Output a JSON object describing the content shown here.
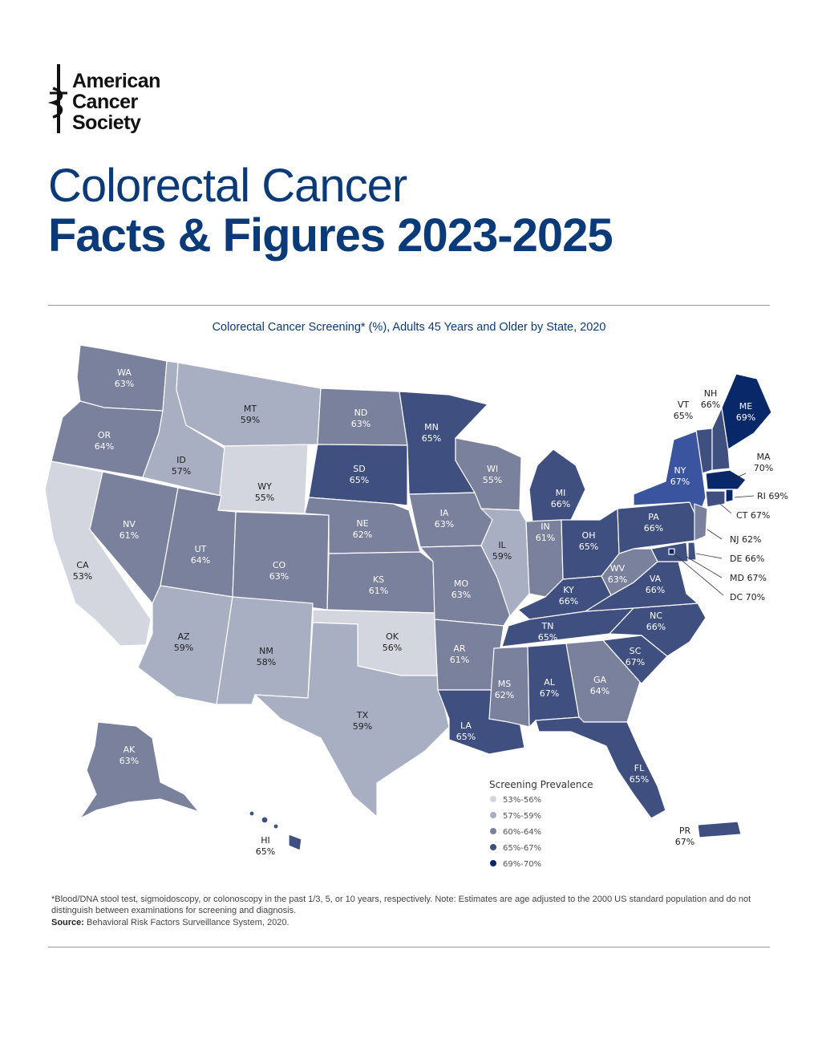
{
  "logo": {
    "line1": "American",
    "line2": "Cancer",
    "line3": "Society"
  },
  "title": {
    "line1": "Colorectal Cancer",
    "line2": "Facts & Figures 2023-2025"
  },
  "map": {
    "title": "Colorectal Cancer Screening* (%), Adults 45 Years and Older by State, 2020",
    "colors": {
      "c1": "#d3d6df",
      "c2": "#a9afc2",
      "c3": "#7a819d",
      "c4": "#3f4f80",
      "c5": "#08286a",
      "c_ny": "#3b54a0"
    },
    "states": [
      {
        "abbr": "WA",
        "value": "63%"
      },
      {
        "abbr": "OR",
        "value": "64%"
      },
      {
        "abbr": "CA",
        "value": "53%"
      },
      {
        "abbr": "ID",
        "value": "57%"
      },
      {
        "abbr": "NV",
        "value": "61%"
      },
      {
        "abbr": "MT",
        "value": "59%"
      },
      {
        "abbr": "WY",
        "value": "55%"
      },
      {
        "abbr": "UT",
        "value": "64%"
      },
      {
        "abbr": "AZ",
        "value": "59%"
      },
      {
        "abbr": "CO",
        "value": "63%"
      },
      {
        "abbr": "NM",
        "value": "58%"
      },
      {
        "abbr": "ND",
        "value": "63%"
      },
      {
        "abbr": "SD",
        "value": "65%"
      },
      {
        "abbr": "NE",
        "value": "62%"
      },
      {
        "abbr": "KS",
        "value": "61%"
      },
      {
        "abbr": "OK",
        "value": "56%"
      },
      {
        "abbr": "TX",
        "value": "59%"
      },
      {
        "abbr": "MN",
        "value": "65%"
      },
      {
        "abbr": "IA",
        "value": "63%"
      },
      {
        "abbr": "MO",
        "value": "63%"
      },
      {
        "abbr": "AR",
        "value": "61%"
      },
      {
        "abbr": "LA",
        "value": "65%"
      },
      {
        "abbr": "WI",
        "value": "55%"
      },
      {
        "abbr": "IL",
        "value": "59%"
      },
      {
        "abbr": "MI",
        "value": "66%"
      },
      {
        "abbr": "IN",
        "value": "61%"
      },
      {
        "abbr": "OH",
        "value": "65%"
      },
      {
        "abbr": "KY",
        "value": "66%"
      },
      {
        "abbr": "TN",
        "value": "65%"
      },
      {
        "abbr": "MS",
        "value": "62%"
      },
      {
        "abbr": "AL",
        "value": "67%"
      },
      {
        "abbr": "GA",
        "value": "64%"
      },
      {
        "abbr": "FL",
        "value": "65%"
      },
      {
        "abbr": "SC",
        "value": "67%"
      },
      {
        "abbr": "NC",
        "value": "66%"
      },
      {
        "abbr": "VA",
        "value": "66%"
      },
      {
        "abbr": "WV",
        "value": "63%"
      },
      {
        "abbr": "PA",
        "value": "66%"
      },
      {
        "abbr": "NY",
        "value": "67%"
      },
      {
        "abbr": "VT",
        "value": "65%"
      },
      {
        "abbr": "NH",
        "value": "66%"
      },
      {
        "abbr": "ME",
        "value": "69%"
      },
      {
        "abbr": "MA",
        "value": "70%"
      },
      {
        "abbr": "AK",
        "value": "63%"
      },
      {
        "abbr": "HI",
        "value": "65%"
      },
      {
        "abbr": "PR",
        "value": "67%"
      }
    ],
    "callouts": {
      "ri": "RI 69%",
      "ct": "CT 67%",
      "nj": "NJ 62%",
      "de": "DE 66%",
      "md": "MD 67%",
      "dc": "DC 70%"
    },
    "legend": {
      "title": "Screening Prevalence",
      "items": [
        "53%-56%",
        "57%-59%",
        "60%-64%",
        "65%-67%",
        "69%-70%"
      ]
    }
  },
  "footnote": "*Blood/DNA stool test, sigmoidoscopy, or colonoscopy in the past 1/3, 5, or 10 years, respectively. Note: Estimates are age adjusted to the 2000 US standard population and do not distinguish between examinations for screening and diagnosis.",
  "source": {
    "label": "Source:",
    "text": " Behavioral Risk Factors Surveillance System, 2020."
  }
}
